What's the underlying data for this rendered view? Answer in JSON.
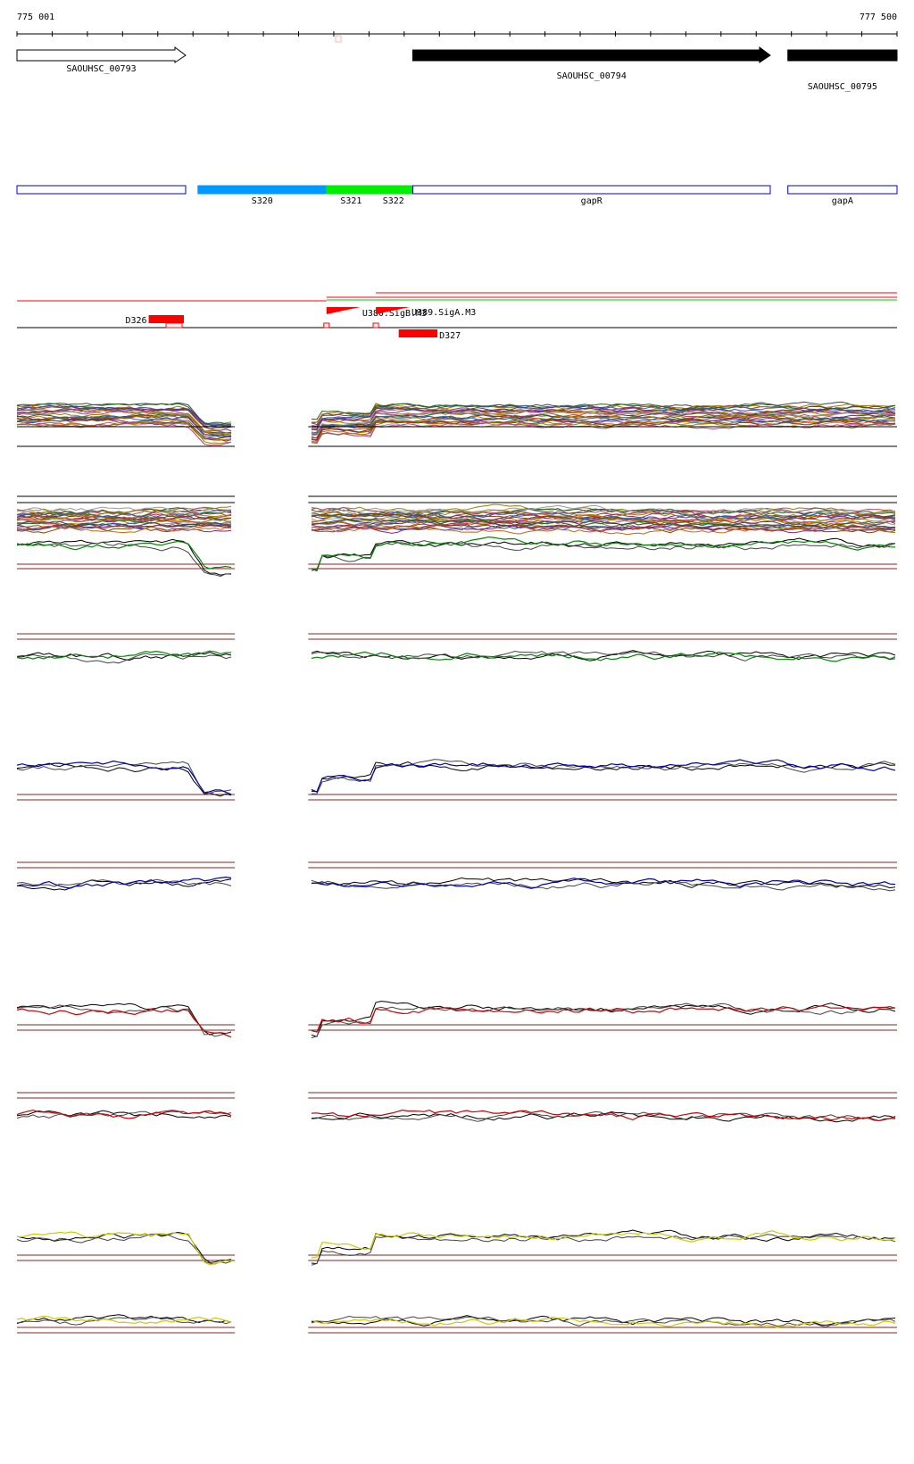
{
  "ruler": {
    "start_label": "775 001",
    "end_label": "777 500",
    "start": 775001,
    "end": 777500
  },
  "genes": [
    {
      "id": "SAOUHSC_00793",
      "label": "SAOUHSC_00793",
      "start": 775001,
      "end": 775480,
      "strand": "+",
      "style": "outline"
    },
    {
      "id": "SAOUHSC_00794",
      "label": "SAOUHSC_00794",
      "start": 776125,
      "end": 777140,
      "strand": "+",
      "style": "filled"
    },
    {
      "id": "SAOUHSC_00795",
      "label": "SAOUHSC_00795",
      "start": 777190,
      "end": 777500,
      "strand": "+",
      "style": "filled"
    }
  ],
  "segments": [
    {
      "label": "",
      "start": 775001,
      "end": 775480,
      "color": "#ffffff",
      "border": "#0000cc"
    },
    {
      "label": "S320",
      "start": 775515,
      "end": 775880,
      "color": "#0099ff",
      "border": "#0099ff"
    },
    {
      "label": "S321",
      "start": 775880,
      "end": 776125,
      "color": "#00ee00",
      "border": "#00ee00",
      "label_pos": 775950
    },
    {
      "label": "S322",
      "start": 775880,
      "end": 776125,
      "color": "#00ee00",
      "border": "#00ee00",
      "label_pos": 776070,
      "no_box": true
    },
    {
      "label": "gapR",
      "start": 776125,
      "end": 777140,
      "color": "#ffffff",
      "border": "#0000cc"
    },
    {
      "label": "gapA",
      "start": 777190,
      "end": 777500,
      "color": "#ffffff",
      "border": "#0000cc"
    }
  ],
  "features": {
    "tss": [
      {
        "label": "U380.SigB.M3",
        "pos": 775880
      },
      {
        "label": "U389.SigA.M3",
        "pos": 776020
      }
    ],
    "blocks": [
      {
        "label": "D326",
        "start": 775375,
        "end": 775475
      },
      {
        "label": "D327",
        "start": 776085,
        "end": 776195
      }
    ]
  },
  "colors": {
    "gene_fill": "#000000",
    "feature": "#ff0000",
    "segment_border": "#0000cc",
    "threshold": "#8b2020"
  },
  "gap": {
    "start": 775645,
    "end": 775790
  },
  "profiles": [
    {
      "color": "#000000",
      "type": "multi"
    },
    {
      "color": "#000000",
      "type": "multi"
    },
    {
      "color": "#008800",
      "type": "paired"
    },
    {
      "color": "#008800",
      "type": "paired"
    },
    {
      "color": "#0000aa",
      "type": "paired"
    },
    {
      "color": "#0000aa",
      "type": "paired"
    },
    {
      "color": "#cc0000",
      "type": "paired"
    },
    {
      "color": "#cc0000",
      "type": "paired"
    },
    {
      "color": "#cccc00",
      "type": "paired"
    },
    {
      "color": "#cccc00",
      "type": "paired"
    }
  ]
}
